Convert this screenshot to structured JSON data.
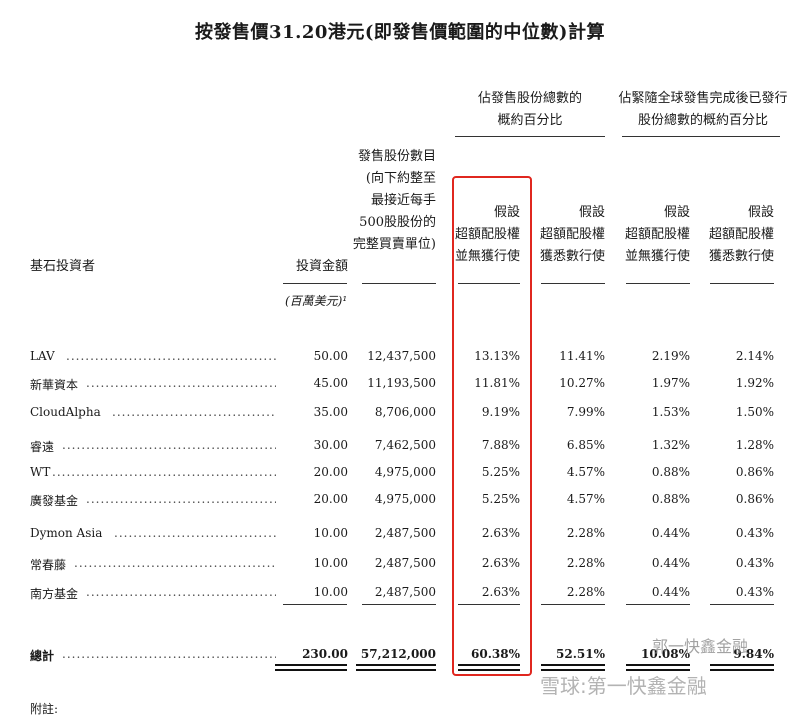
{
  "title": "按發售價31.20港元(即發售價範圍的中位數)計算",
  "headers": {
    "group1": "佔發售股份總數的\n概約百分比",
    "group2": "佔緊隨全球發售完成後已發行\n股份總數的概約百分比",
    "investor": "基石投資者",
    "amount": "投資金額",
    "shares": "發售股份數目\n(向下約整至\n最接近每手\n500股股份的\n完整買賣單位)",
    "col1": "假設\n超額配股權\n並無獲行使",
    "col2": "假設\n超額配股權\n獲悉數行使",
    "col3": "假設\n超額配股權\n並無獲行使",
    "col4": "假設\n超額配股權\n獲悉數行使"
  },
  "unit": "(百萬美元)¹",
  "rows": [
    {
      "name": "LAV",
      "amount": "50.00",
      "shares": "12,437,500",
      "p1": "13.13%",
      "p2": "11.41%",
      "p3": "2.19%",
      "p4": "2.14%"
    },
    {
      "name": "新華資本",
      "amount": "45.00",
      "shares": "11,193,500",
      "p1": "11.81%",
      "p2": "10.27%",
      "p3": "1.97%",
      "p4": "1.92%"
    },
    {
      "name": "CloudAlpha",
      "amount": "35.00",
      "shares": "8,706,000",
      "p1": "9.19%",
      "p2": "7.99%",
      "p3": "1.53%",
      "p4": "1.50%"
    },
    {
      "name": "睿遠",
      "amount": "30.00",
      "shares": "7,462,500",
      "p1": "7.88%",
      "p2": "6.85%",
      "p3": "1.32%",
      "p4": "1.28%"
    },
    {
      "name": "WT",
      "amount": "20.00",
      "shares": "4,975,000",
      "p1": "5.25%",
      "p2": "4.57%",
      "p3": "0.88%",
      "p4": "0.86%"
    },
    {
      "name": "廣發基金",
      "amount": "20.00",
      "shares": "4,975,000",
      "p1": "5.25%",
      "p2": "4.57%",
      "p3": "0.88%",
      "p4": "0.86%"
    },
    {
      "name": "Dymon Asia",
      "amount": "10.00",
      "shares": "2,487,500",
      "p1": "2.63%",
      "p2": "2.28%",
      "p3": "0.44%",
      "p4": "0.43%"
    },
    {
      "name": "常春藤",
      "amount": "10.00",
      "shares": "2,487,500",
      "p1": "2.63%",
      "p2": "2.28%",
      "p3": "0.44%",
      "p4": "0.43%"
    },
    {
      "name": "南方基金",
      "amount": "10.00",
      "shares": "2,487,500",
      "p1": "2.63%",
      "p2": "2.28%",
      "p3": "0.44%",
      "p4": "0.43%"
    }
  ],
  "total": {
    "name": "總計",
    "amount": "230.00",
    "shares": "57,212,000",
    "p1": "60.38%",
    "p2": "52.51%",
    "p3": "10.08%",
    "p4": "9.84%"
  },
  "watermark": "雪球:第一快鑫金融",
  "watermark_small": "郭一快鑫金融",
  "footnote": "附註:"
}
